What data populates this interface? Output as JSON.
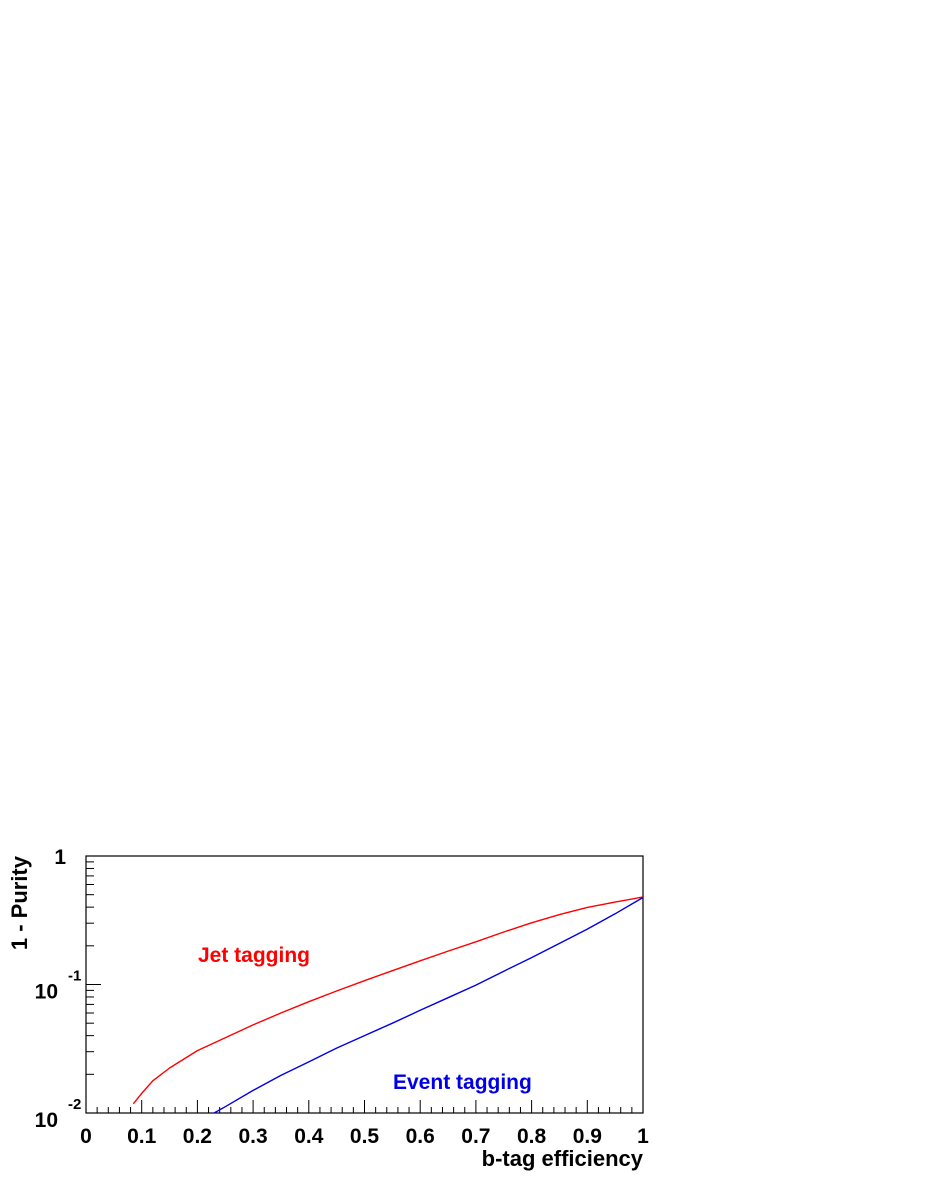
{
  "chart_data": {
    "type": "line",
    "xlabel": "b-tag efficiency",
    "ylabel": "1 - Purity",
    "xlim": [
      0,
      1
    ],
    "ylim": [
      0.01,
      1
    ],
    "yscale": "log",
    "grid": false,
    "x_ticks": [
      {
        "value": 0,
        "label": "0"
      },
      {
        "value": 0.1,
        "label": "0.1"
      },
      {
        "value": 0.2,
        "label": "0.2"
      },
      {
        "value": 0.3,
        "label": "0.3"
      },
      {
        "value": 0.4,
        "label": "0.4"
      },
      {
        "value": 0.5,
        "label": "0.5"
      },
      {
        "value": 0.6,
        "label": "0.6"
      },
      {
        "value": 0.7,
        "label": "0.7"
      },
      {
        "value": 0.8,
        "label": "0.8"
      },
      {
        "value": 0.9,
        "label": "0.9"
      },
      {
        "value": 1,
        "label": "1"
      }
    ],
    "y_ticks": [
      {
        "value": 1,
        "base": "1",
        "exponent": ""
      },
      {
        "value": 0.1,
        "base": "10",
        "exponent": "-1"
      },
      {
        "value": 0.01,
        "base": "10",
        "exponent": "-2"
      }
    ],
    "series": [
      {
        "name": "Jet tagging",
        "color": "#ff0000",
        "x": [
          0.085,
          0.1,
          0.12,
          0.15,
          0.2,
          0.25,
          0.3,
          0.35,
          0.4,
          0.45,
          0.5,
          0.55,
          0.6,
          0.65,
          0.7,
          0.75,
          0.8,
          0.85,
          0.9,
          0.95,
          1.0
        ],
        "y": [
          0.0118,
          0.0142,
          0.0178,
          0.0224,
          0.0306,
          0.0385,
          0.0485,
          0.06,
          0.0735,
          0.089,
          0.107,
          0.128,
          0.153,
          0.182,
          0.215,
          0.256,
          0.302,
          0.35,
          0.398,
          0.438,
          0.48
        ]
      },
      {
        "name": "Event tagging",
        "color": "#0000e6",
        "x": [
          0.23,
          0.25,
          0.3,
          0.35,
          0.4,
          0.45,
          0.5,
          0.55,
          0.6,
          0.65,
          0.7,
          0.75,
          0.8,
          0.85,
          0.9,
          0.95,
          1.0
        ],
        "y": [
          0.01,
          0.0112,
          0.015,
          0.0196,
          0.025,
          0.032,
          0.04,
          0.05,
          0.063,
          0.079,
          0.099,
          0.127,
          0.162,
          0.209,
          0.27,
          0.355,
          0.475
        ]
      }
    ]
  }
}
